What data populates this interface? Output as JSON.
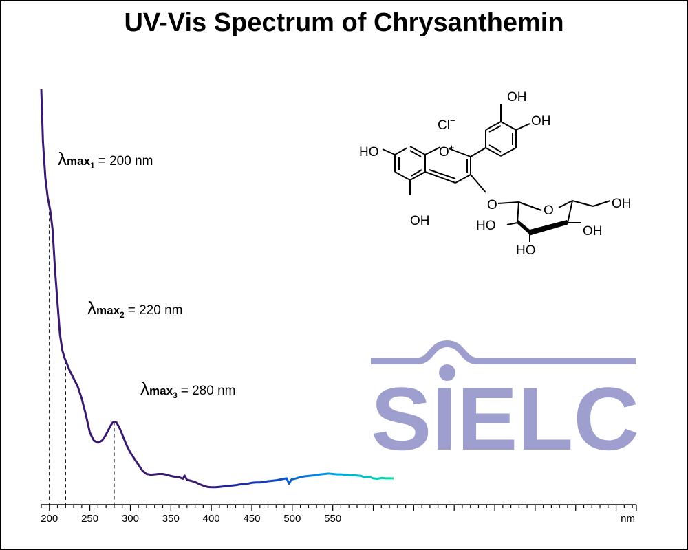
{
  "chart_data": {
    "type": "line",
    "title": "UV-Vis Spectrum of Chrysanthemin",
    "xlabel": "nm",
    "ylabel": "",
    "xlim": [
      190,
      925
    ],
    "ylim": [
      0,
      1
    ],
    "x_ticks": [
      200,
      250,
      300,
      350,
      400,
      450,
      500,
      550
    ],
    "x_tick_labels": [
      "200",
      "250",
      "300",
      "350",
      "400",
      "450",
      "500",
      "550"
    ],
    "grid": false,
    "series": [
      {
        "points": [
          [
            190,
            1.0
          ],
          [
            192,
            0.87
          ],
          [
            195,
            0.78
          ],
          [
            198,
            0.73
          ],
          [
            201,
            0.7
          ],
          [
            204,
            0.65
          ],
          [
            207,
            0.55
          ],
          [
            210,
            0.47
          ],
          [
            213,
            0.39
          ],
          [
            216,
            0.35
          ],
          [
            219,
            0.33
          ],
          [
            222,
            0.315
          ],
          [
            225,
            0.3
          ],
          [
            230,
            0.28
          ],
          [
            235,
            0.26
          ],
          [
            240,
            0.23
          ],
          [
            245,
            0.19
          ],
          [
            250,
            0.145
          ],
          [
            255,
            0.125
          ],
          [
            260,
            0.12
          ],
          [
            265,
            0.125
          ],
          [
            270,
            0.14
          ],
          [
            275,
            0.16
          ],
          [
            278,
            0.17
          ],
          [
            280,
            0.172
          ],
          [
            283,
            0.17
          ],
          [
            287,
            0.155
          ],
          [
            290,
            0.14
          ],
          [
            295,
            0.115
          ],
          [
            300,
            0.095
          ],
          [
            305,
            0.08
          ],
          [
            310,
            0.065
          ],
          [
            315,
            0.05
          ],
          [
            320,
            0.042
          ],
          [
            325,
            0.04
          ],
          [
            330,
            0.041
          ],
          [
            335,
            0.042
          ],
          [
            340,
            0.042
          ],
          [
            345,
            0.04
          ],
          [
            350,
            0.037
          ],
          [
            355,
            0.035
          ],
          [
            360,
            0.034
          ],
          [
            365,
            0.03
          ],
          [
            367,
            0.038
          ],
          [
            370,
            0.027
          ],
          [
            375,
            0.025
          ],
          [
            380,
            0.022
          ],
          [
            385,
            0.017
          ],
          [
            390,
            0.013
          ],
          [
            395,
            0.01
          ],
          [
            400,
            0.009
          ],
          [
            405,
            0.009
          ],
          [
            410,
            0.01
          ],
          [
            415,
            0.011
          ],
          [
            420,
            0.012
          ],
          [
            425,
            0.013
          ],
          [
            430,
            0.014
          ],
          [
            435,
            0.016
          ],
          [
            440,
            0.017
          ],
          [
            445,
            0.018
          ],
          [
            450,
            0.02
          ],
          [
            455,
            0.021
          ],
          [
            460,
            0.021
          ],
          [
            465,
            0.022
          ],
          [
            470,
            0.024
          ],
          [
            475,
            0.025
          ],
          [
            480,
            0.026
          ],
          [
            485,
            0.028
          ],
          [
            490,
            0.03
          ],
          [
            493,
            0.031
          ],
          [
            496,
            0.018
          ],
          [
            499,
            0.028
          ],
          [
            505,
            0.031
          ],
          [
            510,
            0.034
          ],
          [
            515,
            0.036
          ],
          [
            520,
            0.037
          ],
          [
            525,
            0.038
          ],
          [
            530,
            0.039
          ],
          [
            535,
            0.041
          ],
          [
            540,
            0.042
          ],
          [
            545,
            0.043
          ],
          [
            550,
            0.042
          ],
          [
            555,
            0.041
          ],
          [
            560,
            0.041
          ],
          [
            565,
            0.04
          ],
          [
            570,
            0.039
          ],
          [
            575,
            0.039
          ],
          [
            580,
            0.038
          ],
          [
            585,
            0.037
          ],
          [
            590,
            0.033
          ],
          [
            595,
            0.035
          ],
          [
            600,
            0.031
          ],
          [
            605,
            0.03
          ],
          [
            610,
            0.032
          ],
          [
            615,
            0.031
          ],
          [
            620,
            0.031
          ],
          [
            625,
            0.031
          ]
        ]
      }
    ],
    "annotations": [
      {
        "symbol": "λ",
        "sub": "max",
        "index": "1",
        "text": "= 200 nm",
        "x": 200
      },
      {
        "symbol": "λ",
        "sub": "max",
        "index": "2",
        "text": "= 220 nm",
        "x": 220
      },
      {
        "symbol": "λ",
        "sub": "max",
        "index": "3",
        "text": "= 280 nm",
        "x": 280
      }
    ]
  },
  "structure": {
    "chloride": "Cl",
    "chloride_charge": "−",
    "oxonium": "O",
    "oxonium_charge": "+",
    "labels": {
      "oh_top": "OH",
      "oh_right": "OH",
      "ho_left": "HO",
      "oh_bottom": "OH",
      "o_link": "O",
      "o_ring": "O",
      "oh_ch2": "OH",
      "ho_sugar": "HO",
      "oh_sugar": "OH",
      "ho_sugar_bottom": "HO"
    }
  },
  "logo": {
    "text": "SIELC",
    "color": "#9e9fcf"
  },
  "colors": {
    "uv_line": "#3a1a6e",
    "axis": "#000000",
    "visible_stops": [
      "#2a1a8a",
      "#1040c0",
      "#00a0f0",
      "#00e0a0",
      "#40e020",
      "#a0e000",
      "#f0e000",
      "#f0c000"
    ]
  }
}
